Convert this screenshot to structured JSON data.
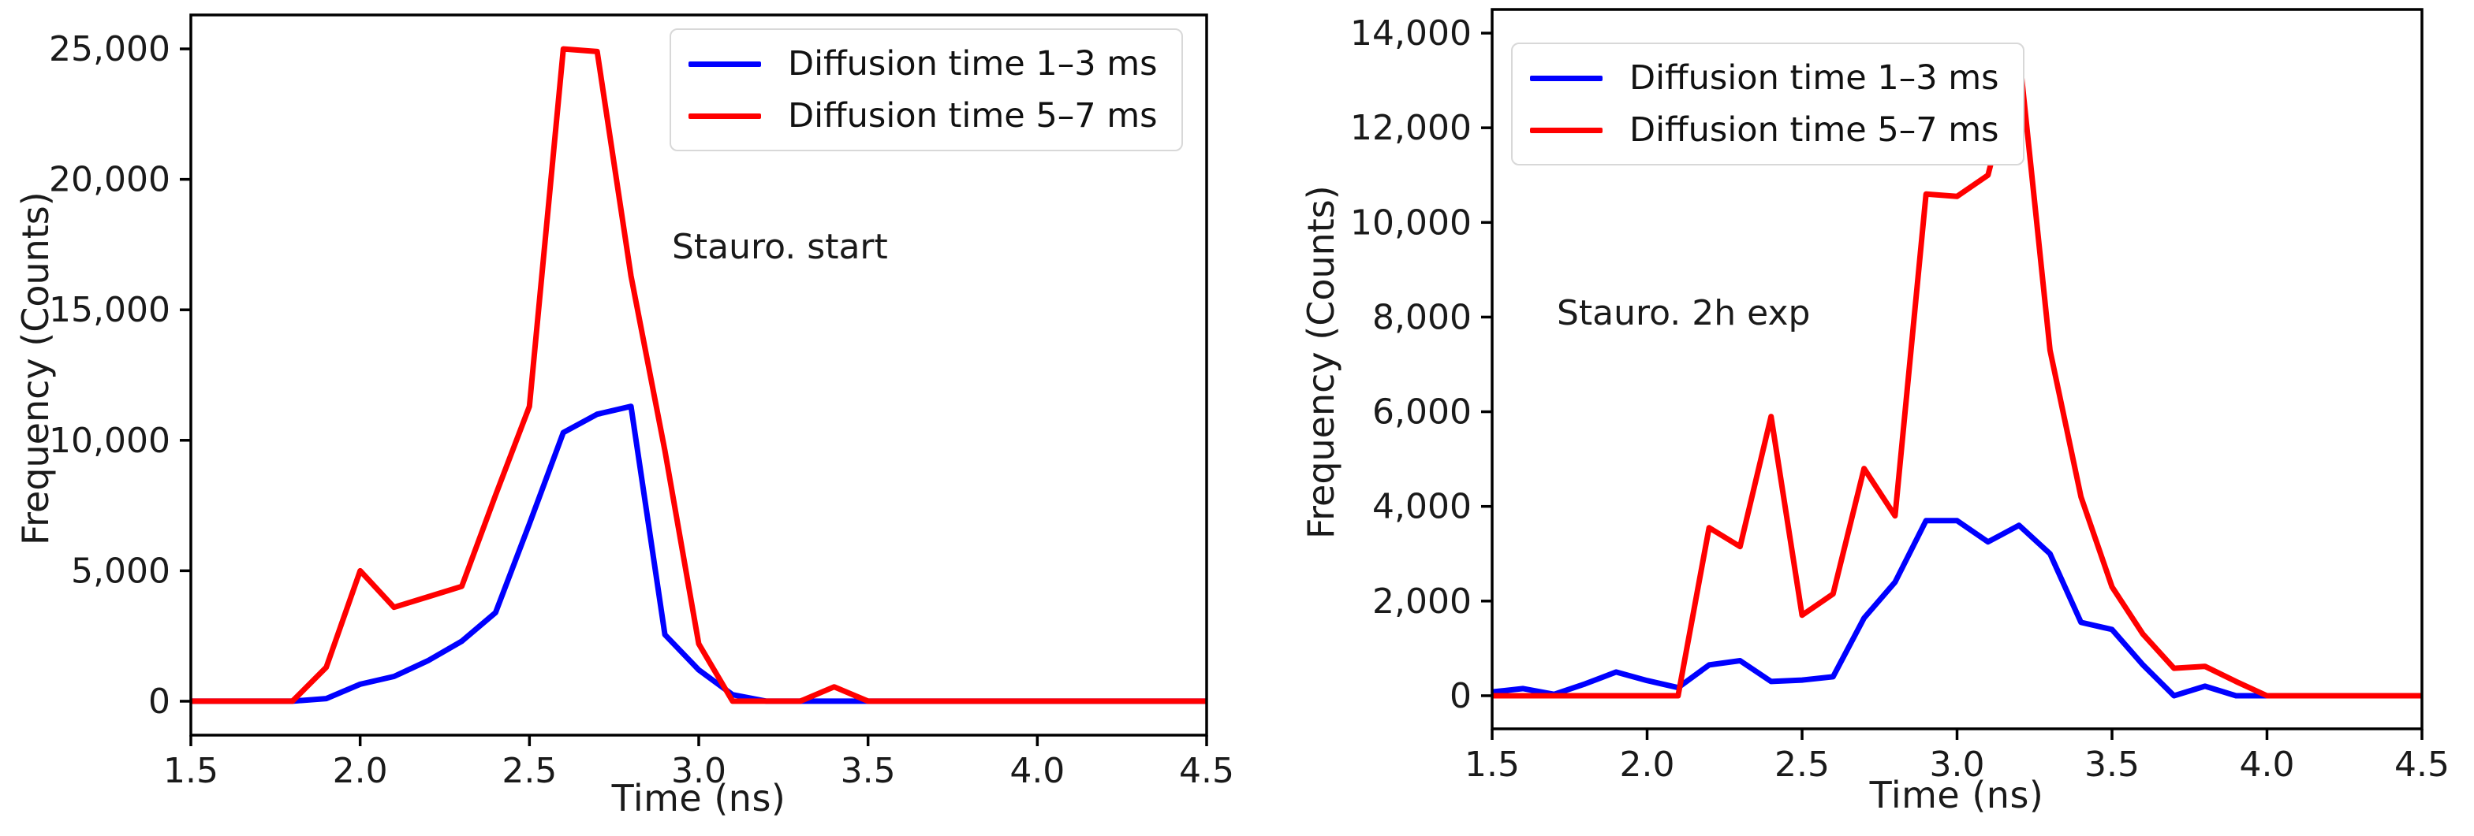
{
  "figure": {
    "background": "#ffffff",
    "spine_color": "#000000",
    "text_color": "#1a1a1a"
  },
  "chart_data": [
    {
      "type": "line",
      "annotation": "Stauro. start",
      "xlabel": "Time (ns)",
      "ylabel": "Frequency (Counts)",
      "xlim": [
        1.5,
        4.5
      ],
      "ylim": [
        -1300,
        26300
      ],
      "legend_position": "top-right",
      "grid": false,
      "x": [
        1.5,
        1.6,
        1.7,
        1.8,
        1.9,
        2.0,
        2.1,
        2.2,
        2.3,
        2.4,
        2.5,
        2.6,
        2.7,
        2.8,
        2.9,
        3.0,
        3.1,
        3.2,
        3.3,
        3.4,
        3.5,
        3.6,
        3.7,
        3.8,
        3.9,
        4.0,
        4.1,
        4.2,
        4.3,
        4.4,
        4.5
      ],
      "xtick_values": [
        1.5,
        2.0,
        2.5,
        3.0,
        3.5,
        4.0,
        4.5
      ],
      "xtick_labels": [
        "1.5",
        "2.0",
        "2.5",
        "3.0",
        "3.5",
        "4.0",
        "4.5"
      ],
      "ytick_values": [
        0,
        5000,
        10000,
        15000,
        20000,
        25000
      ],
      "ytick_labels": [
        "0",
        "5,000",
        "10,000",
        "15,000",
        "20,000",
        "25,000"
      ],
      "series": [
        {
          "name": "Diffusion time 1–3 ms",
          "color": "#0000ff",
          "values": [
            0,
            0,
            0,
            0,
            100,
            650,
            950,
            1550,
            2300,
            3400,
            6800,
            10300,
            11000,
            11300,
            2550,
            1200,
            250,
            0,
            0,
            0,
            0,
            0,
            0,
            0,
            0,
            0,
            0,
            0,
            0,
            0,
            0
          ]
        },
        {
          "name": "Diffusion time 5–7 ms",
          "color": "#ff0000",
          "values": [
            0,
            0,
            0,
            0,
            1300,
            5000,
            3600,
            4000,
            4400,
            7900,
            11300,
            25000,
            24900,
            16300,
            9600,
            2200,
            0,
            0,
            0,
            550,
            0,
            0,
            0,
            0,
            0,
            0,
            0,
            0,
            0,
            0,
            0
          ]
        }
      ]
    },
    {
      "type": "line",
      "annotation": "Stauro. 2h exp",
      "xlabel": "Time (ns)",
      "ylabel": "Frequency (Counts)",
      "xlim": [
        1.5,
        4.5
      ],
      "ylim": [
        -700,
        14500
      ],
      "legend_position": "top-left",
      "grid": false,
      "x": [
        1.5,
        1.6,
        1.7,
        1.8,
        1.9,
        2.0,
        2.1,
        2.2,
        2.3,
        2.4,
        2.5,
        2.6,
        2.7,
        2.8,
        2.9,
        3.0,
        3.1,
        3.2,
        3.3,
        3.4,
        3.5,
        3.6,
        3.7,
        3.8,
        3.9,
        4.0,
        4.1,
        4.2,
        4.3,
        4.4,
        4.5
      ],
      "xtick_values": [
        1.5,
        2.0,
        2.5,
        3.0,
        3.5,
        4.0,
        4.5
      ],
      "xtick_labels": [
        "1.5",
        "2.0",
        "2.5",
        "3.0",
        "3.5",
        "4.0",
        "4.5"
      ],
      "ytick_values": [
        0,
        2000,
        4000,
        6000,
        8000,
        10000,
        12000,
        14000
      ],
      "ytick_labels": [
        "0",
        "2,000",
        "4,000",
        "6,000",
        "8,000",
        "10,000",
        "12,000",
        "14,000"
      ],
      "series": [
        {
          "name": "Diffusion time 1–3 ms",
          "color": "#0000ff",
          "values": [
            80,
            150,
            30,
            250,
            500,
            320,
            170,
            650,
            740,
            300,
            330,
            400,
            1640,
            2400,
            3700,
            3700,
            3250,
            3600,
            3000,
            1550,
            1400,
            650,
            0,
            200,
            0,
            0,
            0,
            0,
            0,
            0,
            0
          ]
        },
        {
          "name": "Diffusion time 5–7 ms",
          "color": "#ff0000",
          "values": [
            0,
            0,
            0,
            0,
            0,
            0,
            0,
            3550,
            3150,
            5900,
            1700,
            2150,
            4800,
            3800,
            10600,
            10550,
            11000,
            13600,
            7300,
            4200,
            2300,
            1300,
            580,
            620,
            300,
            0,
            0,
            0,
            0,
            0,
            0
          ]
        }
      ]
    }
  ]
}
